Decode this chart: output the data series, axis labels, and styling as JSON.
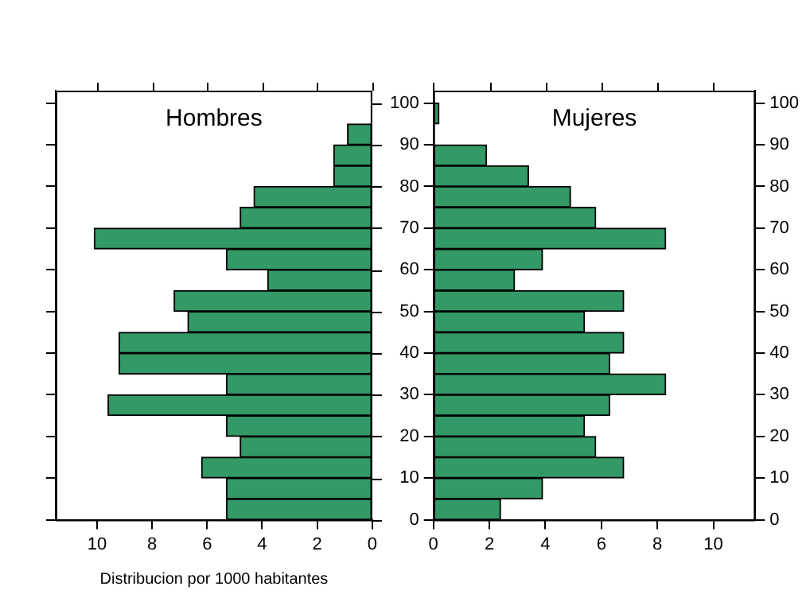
{
  "chart_data": [
    {
      "type": "histogram",
      "title": "Hombres",
      "orientation": "horizontal",
      "color": "#339966",
      "xlabel": "Distribucion por 1000 habitantes",
      "bins": [
        0,
        5,
        10,
        15,
        20,
        25,
        30,
        35,
        40,
        45,
        50,
        55,
        60,
        65,
        70,
        75,
        80,
        85,
        90,
        95,
        100
      ],
      "values": [
        5.3,
        5.3,
        6.2,
        4.8,
        5.3,
        9.6,
        5.3,
        9.2,
        9.2,
        6.7,
        7.2,
        3.8,
        5.3,
        10.1,
        4.8,
        4.3,
        1.4,
        1.4,
        0.9,
        0
      ],
      "xlim": [
        11.5,
        0
      ],
      "xticks": [
        10,
        8,
        6,
        4,
        2,
        0
      ],
      "ylim": [
        0,
        103
      ],
      "yticks": [
        0,
        10,
        20,
        30,
        40,
        50,
        60,
        70,
        80,
        90,
        100
      ],
      "tick_labels": "x",
      "grid": false,
      "legend": false
    },
    {
      "type": "histogram",
      "title": "Mujeres",
      "orientation": "horizontal",
      "color": "#339966",
      "bins": [
        0,
        5,
        10,
        15,
        20,
        25,
        30,
        35,
        40,
        45,
        50,
        55,
        60,
        65,
        70,
        75,
        80,
        85,
        90,
        95,
        100
      ],
      "values": [
        2.4,
        3.9,
        6.8,
        5.8,
        5.4,
        6.3,
        8.3,
        6.3,
        6.8,
        5.4,
        6.8,
        2.9,
        3.9,
        8.3,
        5.8,
        4.9,
        3.4,
        1.9,
        0,
        0.2
      ],
      "xlim": [
        0,
        11.5
      ],
      "xticks": [
        0,
        2,
        4,
        6,
        8,
        10
      ],
      "ylim": [
        0,
        103
      ],
      "yticks": [
        0,
        10,
        20,
        30,
        40,
        50,
        60,
        70,
        80,
        90,
        100
      ],
      "y2lim": [
        0,
        103
      ],
      "y2ticks": [
        0,
        10,
        20,
        30,
        40,
        50,
        60,
        70,
        80,
        90,
        100
      ],
      "grid": false,
      "legend": false
    }
  ]
}
